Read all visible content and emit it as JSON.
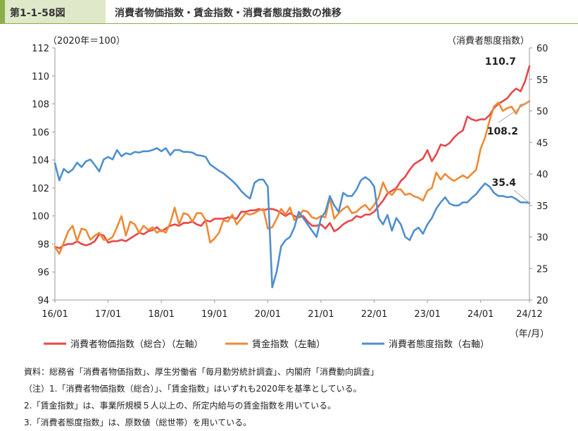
{
  "header": {
    "figure_number": "第1-1-58図",
    "title": "消費者物価指数・賃金指数・消費者態度指数の推移"
  },
  "colors": {
    "cpi": "#e8474a",
    "wage": "#ee8a35",
    "consumer": "#4f8fcd"
  },
  "chart_data": {
    "type": "line",
    "left_axis_label": "（2020年＝100）",
    "right_axis_label": "（消費者態度指数）",
    "x_unit_label": "（年/月）",
    "x_tick_labels": [
      "16/01",
      "17/01",
      "18/01",
      "19/01",
      "20/01",
      "21/01",
      "22/01",
      "23/01",
      "24/01",
      "24/12"
    ],
    "x_tick_months": [
      0,
      12,
      24,
      36,
      48,
      60,
      72,
      84,
      96,
      107
    ],
    "x_range": [
      "2016-01",
      "2024-12"
    ],
    "ylim_left": [
      94,
      112
    ],
    "yticks_left": [
      94,
      96,
      98,
      100,
      102,
      104,
      106,
      108,
      110,
      112
    ],
    "ylim_right": [
      20,
      60
    ],
    "yticks_right": [
      20,
      25,
      30,
      35,
      40,
      45,
      50,
      55,
      60
    ],
    "grid": false,
    "legend_position": "bottom",
    "annotations": [
      {
        "text": "110.7",
        "series": "cpi",
        "month": 107
      },
      {
        "text": "108.2",
        "series": "wage",
        "month": 107
      },
      {
        "text": "35.4",
        "series": "consumer",
        "month": 107
      }
    ],
    "series": [
      {
        "key": "cpi",
        "name": "消費者物価指数（総合）（左軸）",
        "axis": "left",
        "start": "2016-01",
        "values": [
          97.8,
          97.7,
          97.9,
          98.0,
          98.0,
          98.2,
          98.0,
          97.9,
          98.0,
          98.2,
          98.7,
          98.6,
          98.1,
          98.2,
          98.2,
          98.3,
          98.2,
          98.4,
          98.6,
          98.8,
          98.7,
          98.9,
          99.0,
          99.2,
          98.9,
          99.1,
          99.3,
          99.4,
          99.3,
          99.5,
          99.5,
          99.6,
          99.4,
          99.3,
          99.7,
          99.6,
          99.8,
          99.8,
          99.8,
          99.9,
          99.9,
          99.8,
          100.3,
          100.3,
          100.4,
          100.4,
          100.5,
          100.4,
          100.5,
          100.5,
          100.4,
          100.2,
          100.0,
          100.2,
          100.0,
          99.9,
          100.0,
          99.6,
          99.3,
          99.3,
          99.4,
          99.1,
          99.5,
          98.9,
          99.1,
          99.4,
          99.6,
          99.7,
          100.0,
          99.9,
          100.1,
          100.1,
          100.3,
          100.7,
          101.1,
          101.6,
          101.8,
          102.0,
          102.5,
          102.8,
          103.3,
          103.7,
          103.9,
          104.1,
          104.7,
          103.9,
          104.4,
          105.1,
          105.0,
          105.2,
          105.6,
          105.9,
          106.1,
          107.1,
          106.9,
          106.8,
          106.9,
          106.9,
          107.2,
          107.7,
          108.0,
          108.2,
          108.4,
          108.8,
          109.1,
          108.9,
          109.6,
          110.7
        ]
      },
      {
        "key": "wage",
        "name": "賃金指数（左軸）",
        "axis": "left",
        "start": "2016-01",
        "values": [
          97.8,
          97.3,
          98.1,
          98.9,
          99.3,
          98.2,
          99.1,
          99.0,
          98.3,
          98.6,
          98.8,
          98.3,
          98.3,
          98.5,
          99.2,
          100.0,
          98.6,
          99.6,
          99.4,
          98.8,
          99.3,
          99.0,
          99.2,
          98.8,
          99.0,
          98.8,
          99.5,
          100.6,
          99.4,
          100.2,
          100.1,
          99.6,
          100.2,
          100.2,
          99.7,
          98.1,
          98.4,
          98.8,
          99.7,
          99.6,
          100.1,
          99.4,
          99.8,
          100.2,
          100.1,
          100.2,
          100.4,
          100.5,
          99.1,
          99.2,
          99.8,
          100.5,
          100.1,
          100.6,
          99.7,
          100.0,
          100.4,
          100.3,
          99.9,
          99.8,
          100.0,
          99.9,
          101.3,
          99.8,
          100.2,
          100.5,
          100.7,
          100.2,
          100.3,
          100.6,
          100.8,
          100.4,
          100.8,
          101.3,
          102.4,
          101.7,
          101.5,
          101.9,
          101.9,
          101.5,
          101.6,
          101.4,
          101.3,
          101.1,
          101.8,
          102.0,
          103.1,
          102.6,
          103.0,
          102.7,
          102.5,
          102.7,
          102.9,
          102.7,
          103.0,
          103.3,
          104.8,
          105.6,
          106.8,
          107.8,
          108.1,
          107.5,
          107.7,
          107.8,
          107.3,
          107.9,
          108.0,
          108.2
        ]
      },
      {
        "key": "consumer",
        "name": "消費者態度指数（右軸）",
        "axis": "right",
        "start": "2016-01",
        "values": [
          41.7,
          39.0,
          40.8,
          40.2,
          40.7,
          41.8,
          41.1,
          42.0,
          42.3,
          41.4,
          40.4,
          42.3,
          42.7,
          42.3,
          43.8,
          42.8,
          43.3,
          43.1,
          43.5,
          43.4,
          43.6,
          43.6,
          43.8,
          44.1,
          43.6,
          44.1,
          43.0,
          43.8,
          43.8,
          43.5,
          43.5,
          43.4,
          43.0,
          42.9,
          42.7,
          41.5,
          41.0,
          40.5,
          40.1,
          39.5,
          38.9,
          38.2,
          37.3,
          36.6,
          36.1,
          38.6,
          39.1,
          39.1,
          38.0,
          22.0,
          24.5,
          28.5,
          29.5,
          30.0,
          31.5,
          34.0,
          33.0,
          32.0,
          31.0,
          30.0,
          33.0,
          34.0,
          36.5,
          35.0,
          34.0,
          37.0,
          36.5,
          36.5,
          37.5,
          39.0,
          39.5,
          39.0,
          38.0,
          33.0,
          32.0,
          33.5,
          31.0,
          33.0,
          32.0,
          30.0,
          29.5,
          31.0,
          31.5,
          30.5,
          32.0,
          33.0,
          34.5,
          35.5,
          36.3,
          35.3,
          35.0,
          35.0,
          35.5,
          35.5,
          36.2,
          36.8,
          37.7,
          38.5,
          38.0,
          37.0,
          36.5,
          36.5,
          36.3,
          36.4,
          36.0,
          35.5,
          35.5,
          35.4
        ]
      }
    ]
  },
  "notes": [
    "資料：総務省「消費者物価指数」、厚生労働省「毎月勤労統計調査」、内閣府「消費動向調査」",
    "（注）1.「消費者物価指数（総合）」、「賃金指数」はいずれも2020年を基準としている。",
    "2.「賃金指数」は、事業所規模５人以上の、所定内給与の賃金指数を用いている。",
    "3.「消費者態度指数」は、原数値（総世帯）を用いている。"
  ]
}
